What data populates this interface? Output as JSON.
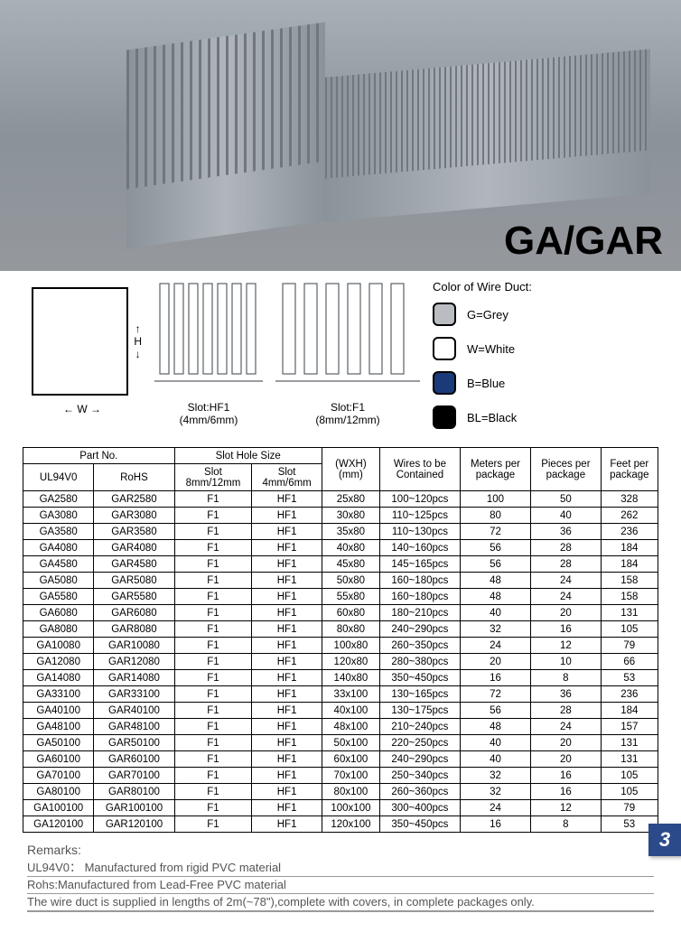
{
  "hero_title": "GA/GAR",
  "diagram_w": "W",
  "diagram_h": "H",
  "slot1_label": "Slot:HF1",
  "slot1_size": "(4mm/6mm)",
  "slot2_label": "Slot:F1",
  "slot2_size": "(8mm/12mm)",
  "colors_heading": "Color of Wire Duct:",
  "swatches": [
    {
      "color": "#b9bdc2",
      "label": "G=Grey"
    },
    {
      "color": "#ffffff",
      "label": "W=White"
    },
    {
      "color": "#1a3a7a",
      "label": "B=Blue"
    },
    {
      "color": "#000000",
      "label": "BL=Black"
    }
  ],
  "headers": {
    "partno": "Part No.",
    "slotsize": "Slot Hole Size",
    "ul": "UL94V0",
    "rohs": "RoHS",
    "slot_a": "Slot\n8mm/12mm",
    "slot_b": "Slot\n4mm/6mm",
    "wxh": "(WXH)\n(mm)",
    "wires": "Wires to be\nContained",
    "meters": "Meters per\npackage",
    "pieces": "Pieces per\npackage",
    "feet": "Feet per\npackage"
  },
  "rows": [
    [
      "GA2580",
      "GAR2580",
      "F1",
      "HF1",
      "25x80",
      "100~120pcs",
      "100",
      "50",
      "328"
    ],
    [
      "GA3080",
      "GAR3080",
      "F1",
      "HF1",
      "30x80",
      "110~125pcs",
      "80",
      "40",
      "262"
    ],
    [
      "GA3580",
      "GAR3580",
      "F1",
      "HF1",
      "35x80",
      "110~130pcs",
      "72",
      "36",
      "236"
    ],
    [
      "GA4080",
      "GAR4080",
      "F1",
      "HF1",
      "40x80",
      "140~160pcs",
      "56",
      "28",
      "184"
    ],
    [
      "GA4580",
      "GAR4580",
      "F1",
      "HF1",
      "45x80",
      "145~165pcs",
      "56",
      "28",
      "184"
    ],
    [
      "GA5080",
      "GAR5080",
      "F1",
      "HF1",
      "50x80",
      "160~180pcs",
      "48",
      "24",
      "158"
    ],
    [
      "GA5580",
      "GAR5580",
      "F1",
      "HF1",
      "55x80",
      "160~180pcs",
      "48",
      "24",
      "158"
    ],
    [
      "GA6080",
      "GAR6080",
      "F1",
      "HF1",
      "60x80",
      "180~210pcs",
      "40",
      "20",
      "131"
    ],
    [
      "GA8080",
      "GAR8080",
      "F1",
      "HF1",
      "80x80",
      "240~290pcs",
      "32",
      "16",
      "105"
    ],
    [
      "GA10080",
      "GAR10080",
      "F1",
      "HF1",
      "100x80",
      "260~350pcs",
      "24",
      "12",
      "79"
    ],
    [
      "GA12080",
      "GAR12080",
      "F1",
      "HF1",
      "120x80",
      "280~380pcs",
      "20",
      "10",
      "66"
    ],
    [
      "GA14080",
      "GAR14080",
      "F1",
      "HF1",
      "140x80",
      "350~450pcs",
      "16",
      "8",
      "53"
    ],
    [
      "GA33100",
      "GAR33100",
      "F1",
      "HF1",
      "33x100",
      "130~165pcs",
      "72",
      "36",
      "236"
    ],
    [
      "GA40100",
      "GAR40100",
      "F1",
      "HF1",
      "40x100",
      "130~175pcs",
      "56",
      "28",
      "184"
    ],
    [
      "GA48100",
      "GAR48100",
      "F1",
      "HF1",
      "48x100",
      "210~240pcs",
      "48",
      "24",
      "157"
    ],
    [
      "GA50100",
      "GAR50100",
      "F1",
      "HF1",
      "50x100",
      "220~250pcs",
      "40",
      "20",
      "131"
    ],
    [
      "GA60100",
      "GAR60100",
      "F1",
      "HF1",
      "60x100",
      "240~290pcs",
      "40",
      "20",
      "131"
    ],
    [
      "GA70100",
      "GAR70100",
      "F1",
      "HF1",
      "70x100",
      "250~340pcs",
      "32",
      "16",
      "105"
    ],
    [
      "GA80100",
      "GAR80100",
      "F1",
      "HF1",
      "80x100",
      "260~360pcs",
      "32",
      "16",
      "105"
    ],
    [
      "GA100100",
      "GAR100100",
      "F1",
      "HF1",
      "100x100",
      "300~400pcs",
      "24",
      "12",
      "79"
    ],
    [
      "GA120100",
      "GAR120100",
      "F1",
      "HF1",
      "120x100",
      "350~450pcs",
      "16",
      "8",
      "53"
    ]
  ],
  "remarks_title": "Remarks:",
  "remarks": [
    "UL94V0： Manufactured from rigid PVC material",
    "Rohs:Manufactured from Lead-Free PVC material",
    "The wire duct is supplied in lengths of 2m(~78\"),complete with covers, in complete packages only."
  ],
  "page_number": "3"
}
